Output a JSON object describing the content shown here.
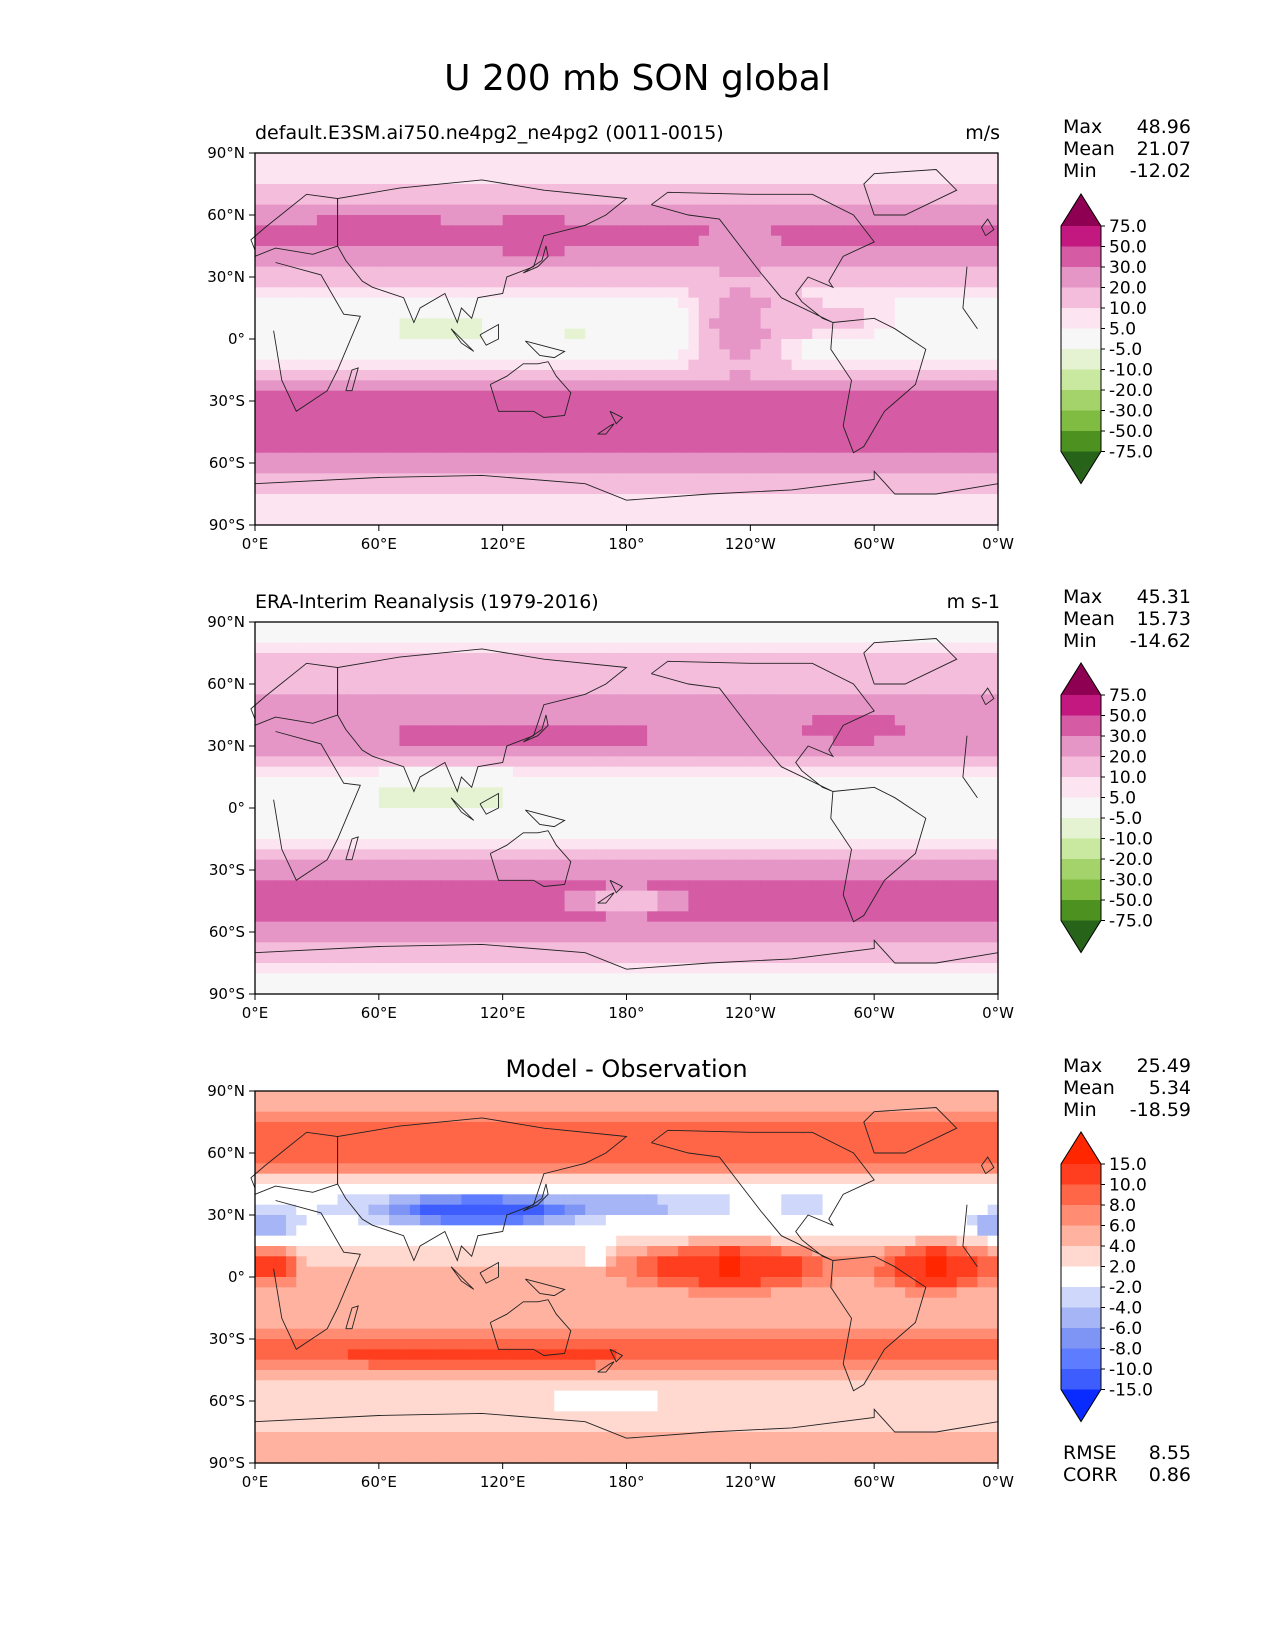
{
  "title": "U 200 mb SON global",
  "colors": {
    "pink": [
      "#276419",
      "#4d9221",
      "#7fbc41",
      "#a4d36b",
      "#c9e9a0",
      "#e5f3d2",
      "#f7f7f7",
      "#fce4f1",
      "#f4bddc",
      "#e596c6",
      "#d45ba4",
      "#c2187f",
      "#8e0152"
    ],
    "diff": [
      "#0a2bff",
      "#3d5dff",
      "#5e7cff",
      "#7f95f5",
      "#a6b5f5",
      "#cfd7fa",
      "#ffffff",
      "#ffd9d0",
      "#ffb2a0",
      "#ff8c73",
      "#ff6647",
      "#ff3d1f",
      "#ff2600"
    ]
  },
  "chart_data": [
    {
      "type": "heatmap",
      "name": "test",
      "left_title": "default.E3SM.ai750.ne4pg2_ne4pg2 (0011-0015)",
      "right_title": "m/s",
      "center_title": "",
      "xticks": [
        "0°E",
        "60°E",
        "120°E",
        "180°",
        "120°W",
        "60°W",
        "0°W"
      ],
      "yticks": [
        "90°N",
        "60°N",
        "30°N",
        "0°",
        "30°S",
        "60°S",
        "90°S"
      ],
      "x_range": [
        0,
        360
      ],
      "y_range": [
        -90,
        90
      ],
      "stats": [
        {
          "label": "Max",
          "value": "48.96"
        },
        {
          "label": "Mean",
          "value": "21.07"
        },
        {
          "label": "Min",
          "value": "-12.02"
        }
      ],
      "colorbar_levels": [
        "75.0",
        "50.0",
        "30.0",
        "20.0",
        "10.0",
        "5.0",
        "-5.0",
        "-10.0",
        "-20.0",
        "-30.0",
        "-50.0",
        "-75.0"
      ],
      "palette": "pink",
      "zonal_profile": [
        [
          85,
          5
        ],
        [
          75,
          10
        ],
        [
          65,
          20
        ],
        [
          55,
          30
        ],
        [
          45,
          30
        ],
        [
          35,
          20
        ],
        [
          25,
          10
        ],
        [
          15,
          0
        ],
        [
          5,
          0
        ],
        [
          -5,
          0
        ],
        [
          -15,
          10
        ],
        [
          -25,
          30
        ],
        [
          -35,
          40
        ],
        [
          -45,
          40
        ],
        [
          -55,
          30
        ],
        [
          -65,
          20
        ],
        [
          -75,
          10
        ],
        [
          -85,
          5
        ]
      ],
      "blobs": [
        {
          "lon": 90,
          "lat": 5,
          "rx": 40,
          "ry": 8,
          "v": -7
        },
        {
          "lon": 155,
          "lat": 3,
          "rx": 12,
          "ry": 4,
          "v": -6
        },
        {
          "lon": 60,
          "lat": 55,
          "rx": 25,
          "ry": 6,
          "v": 40
        },
        {
          "lon": 135,
          "lat": 50,
          "rx": 20,
          "ry": 8,
          "v": 40
        },
        {
          "lon": 270,
          "lat": 10,
          "rx": 40,
          "ry": 10,
          "v": 15
        },
        {
          "lon": 235,
          "lat": 5,
          "rx": 20,
          "ry": 30,
          "v": 25
        }
      ]
    },
    {
      "type": "heatmap",
      "name": "reference",
      "left_title": "ERA-Interim Reanalysis (1979-2016)",
      "right_title": "m s-1",
      "center_title": "",
      "xticks": [
        "0°E",
        "60°E",
        "120°E",
        "180°",
        "120°W",
        "60°W",
        "0°W"
      ],
      "yticks": [
        "90°N",
        "60°N",
        "30°N",
        "0°",
        "30°S",
        "60°S",
        "90°S"
      ],
      "x_range": [
        0,
        360
      ],
      "y_range": [
        -90,
        90
      ],
      "stats": [
        {
          "label": "Max",
          "value": "45.31"
        },
        {
          "label": "Mean",
          "value": "15.73"
        },
        {
          "label": "Min",
          "value": "-14.62"
        }
      ],
      "colorbar_levels": [
        "75.0",
        "50.0",
        "30.0",
        "20.0",
        "10.0",
        "5.0",
        "-5.0",
        "-10.0",
        "-20.0",
        "-30.0",
        "-50.0",
        "-75.0"
      ],
      "palette": "pink",
      "zonal_profile": [
        [
          85,
          0
        ],
        [
          75,
          10
        ],
        [
          65,
          10
        ],
        [
          55,
          20
        ],
        [
          45,
          20
        ],
        [
          35,
          30
        ],
        [
          25,
          20
        ],
        [
          15,
          0
        ],
        [
          5,
          0
        ],
        [
          -5,
          0
        ],
        [
          -15,
          5
        ],
        [
          -25,
          20
        ],
        [
          -35,
          30
        ],
        [
          -45,
          40
        ],
        [
          -55,
          30
        ],
        [
          -65,
          20
        ],
        [
          -75,
          10
        ],
        [
          -85,
          0
        ]
      ],
      "blobs": [
        {
          "lon": 90,
          "lat": 5,
          "rx": 40,
          "ry": 8,
          "v": -10
        },
        {
          "lon": 130,
          "lat": 35,
          "rx": 50,
          "ry": 8,
          "v": 40
        },
        {
          "lon": 290,
          "lat": 40,
          "rx": 20,
          "ry": 6,
          "v": 45
        },
        {
          "lon": 250,
          "lat": 5,
          "rx": 25,
          "ry": 4,
          "v": -6
        },
        {
          "lon": 180,
          "lat": -45,
          "rx": 25,
          "ry": 5,
          "v": 5
        }
      ]
    },
    {
      "type": "heatmap",
      "name": "difference",
      "left_title": "",
      "right_title": "",
      "center_title": "Model - Observation",
      "xticks": [
        "0°E",
        "60°E",
        "120°E",
        "180°",
        "120°W",
        "60°W",
        "0°W"
      ],
      "yticks": [
        "90°N",
        "60°N",
        "30°N",
        "0°",
        "30°S",
        "60°S",
        "90°S"
      ],
      "x_range": [
        0,
        360
      ],
      "y_range": [
        -90,
        90
      ],
      "stats": [
        {
          "label": "Max",
          "value": "25.49"
        },
        {
          "label": "Mean",
          "value": "5.34"
        },
        {
          "label": "Min",
          "value": "-18.59"
        }
      ],
      "metrics": [
        {
          "label": "RMSE",
          "value": "8.55"
        },
        {
          "label": "CORR",
          "value": "0.86"
        }
      ],
      "colorbar_levels": [
        "15.0",
        "10.0",
        "8.0",
        "6.0",
        "4.0",
        "2.0",
        "-2.0",
        "-4.0",
        "-6.0",
        "-8.0",
        "-10.0",
        "-15.0"
      ],
      "palette": "diff",
      "zonal_profile": [
        [
          85,
          4
        ],
        [
          75,
          8
        ],
        [
          65,
          10
        ],
        [
          55,
          8
        ],
        [
          45,
          0
        ],
        [
          35,
          -2
        ],
        [
          25,
          0
        ],
        [
          15,
          2
        ],
        [
          5,
          4
        ],
        [
          -5,
          4
        ],
        [
          -15,
          4
        ],
        [
          -25,
          6
        ],
        [
          -35,
          10
        ],
        [
          -45,
          6
        ],
        [
          -55,
          2
        ],
        [
          -65,
          2
        ],
        [
          -75,
          4
        ],
        [
          -85,
          4
        ]
      ],
      "blobs": [
        {
          "lon": 110,
          "lat": 32,
          "rx": 45,
          "ry": 7,
          "v": -14
        },
        {
          "lon": 190,
          "lat": 35,
          "rx": 30,
          "ry": 4,
          "v": -5
        },
        {
          "lon": 10,
          "lat": 25,
          "rx": 12,
          "ry": 5,
          "v": -6
        },
        {
          "lon": 355,
          "lat": 25,
          "rx": 8,
          "ry": 5,
          "v": -6
        },
        {
          "lon": 265,
          "lat": 35,
          "rx": 10,
          "ry": 4,
          "v": -4
        },
        {
          "lon": 230,
          "lat": 5,
          "rx": 45,
          "ry": 10,
          "v": 16
        },
        {
          "lon": 330,
          "lat": 5,
          "rx": 25,
          "ry": 10,
          "v": 16
        },
        {
          "lon": 10,
          "lat": 5,
          "rx": 10,
          "ry": 8,
          "v": 12
        },
        {
          "lon": 110,
          "lat": -38,
          "rx": 60,
          "ry": 5,
          "v": 12
        },
        {
          "lon": 170,
          "lat": -60,
          "rx": 15,
          "ry": 4,
          "v": -4
        },
        {
          "lon": 165,
          "lat": 10,
          "rx": 5,
          "ry": 3,
          "v": -6
        }
      ]
    }
  ]
}
